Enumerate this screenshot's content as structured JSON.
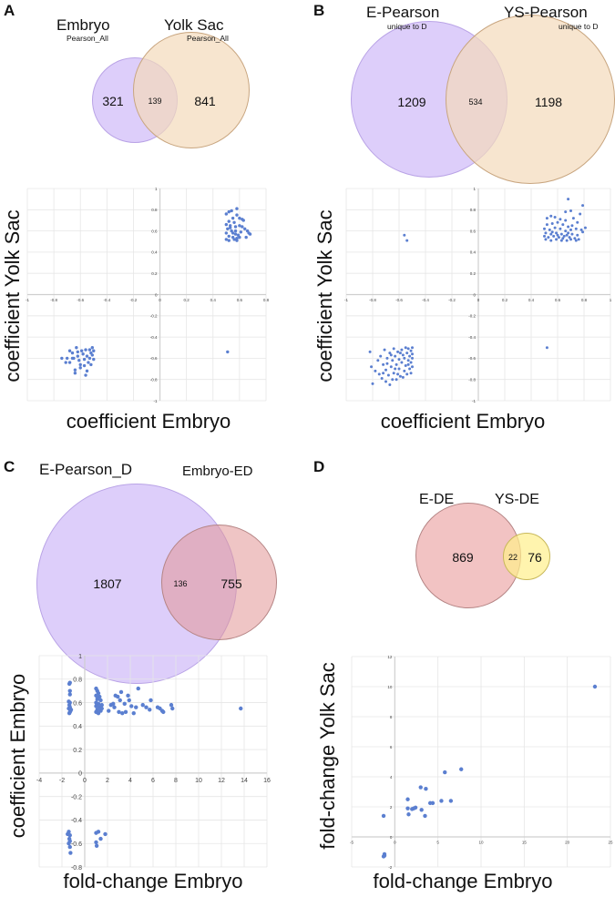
{
  "panels": {
    "A": {
      "label": "A",
      "venn": {
        "left": "Embryo",
        "left_sub": "Pearson_All",
        "right": "Yolk Sac",
        "right_sub": "Pearson_All",
        "only_left": "321",
        "both": "139",
        "only_right": "841"
      },
      "ylabel": "coefficient Yolk Sac",
      "xlabel": "coefficient Embryo"
    },
    "B": {
      "label": "B",
      "venn": {
        "left": "E-Pearson",
        "left_sub": "unique to D",
        "right": "YS-Pearson",
        "right_sub": "unique to D",
        "only_left": "1209",
        "both": "534",
        "only_right": "1198"
      },
      "ylabel": "coefficient Yolk Sac",
      "xlabel": "coefficient Embryo"
    },
    "C": {
      "label": "C",
      "venn": {
        "left": "E-Pearson_D",
        "right": "Embryo-ED",
        "only_left": "1807",
        "both": "136",
        "only_right": "755"
      },
      "ylabel": "coefficient Embryo",
      "xlabel": "fold-change Embryo"
    },
    "D": {
      "label": "D",
      "venn": {
        "left": "E-DE",
        "right": "YS-DE",
        "only_left": "869",
        "both": "22",
        "only_right": "76"
      },
      "ylabel": "fold-change Yolk Sac",
      "xlabel": "fold-change Embryo"
    }
  },
  "colors": {
    "point": "#5b7fd0",
    "grid": "#e6e6e6",
    "axis": "#cfcfcf",
    "purple": "#d9c8f6",
    "orange": "#f5dfc2",
    "pink": "#e8a6a6",
    "yellow": "#fff3a0"
  },
  "chart_data": [
    {
      "id": "A",
      "type": "scatter",
      "xlabel": "coefficient Embryo",
      "ylabel": "coefficient Yolk Sac",
      "xlim": [
        -1,
        0.8
      ],
      "ylim": [
        -1,
        1
      ],
      "xticks": [
        "-1",
        "-0.8",
        "-0.6",
        "-0.4",
        "-0.2",
        "0",
        "0.2",
        "0.4",
        "0.6",
        "0.8"
      ],
      "xtick_values": [
        -1,
        -0.8,
        -0.6,
        -0.4,
        -0.2,
        0,
        0.2,
        0.4,
        0.6,
        0.8
      ],
      "yticks": [
        "-1",
        "-0.8",
        "-0.6",
        "-0.4",
        "-0.2",
        "0",
        "0.2",
        "0.4",
        "0.6",
        "0.8",
        "1"
      ],
      "ytick_values": [
        -1,
        -0.8,
        -0.6,
        -0.4,
        -0.2,
        0,
        0.2,
        0.4,
        0.6,
        0.8,
        1
      ],
      "points": [
        [
          0.5,
          0.76
        ],
        [
          0.52,
          0.78
        ],
        [
          0.54,
          0.79
        ],
        [
          0.58,
          0.81
        ],
        [
          0.58,
          0.75
        ],
        [
          0.55,
          0.72
        ],
        [
          0.6,
          0.72
        ],
        [
          0.62,
          0.71
        ],
        [
          0.63,
          0.7
        ],
        [
          0.52,
          0.69
        ],
        [
          0.56,
          0.68
        ],
        [
          0.5,
          0.66
        ],
        [
          0.53,
          0.65
        ],
        [
          0.57,
          0.64
        ],
        [
          0.6,
          0.65
        ],
        [
          0.62,
          0.64
        ],
        [
          0.64,
          0.62
        ],
        [
          0.66,
          0.6
        ],
        [
          0.67,
          0.58
        ],
        [
          0.68,
          0.57
        ],
        [
          0.51,
          0.62
        ],
        [
          0.54,
          0.6
        ],
        [
          0.55,
          0.58
        ],
        [
          0.57,
          0.57
        ],
        [
          0.59,
          0.56
        ],
        [
          0.5,
          0.58
        ],
        [
          0.52,
          0.55
        ],
        [
          0.55,
          0.54
        ],
        [
          0.58,
          0.53
        ],
        [
          0.6,
          0.54
        ],
        [
          0.65,
          0.54
        ],
        [
          0.5,
          0.52
        ],
        [
          0.52,
          0.51
        ],
        [
          0.56,
          0.52
        ],
        [
          0.58,
          0.51
        ],
        [
          0.53,
          0.63
        ],
        [
          0.57,
          0.6
        ],
        [
          0.61,
          0.59
        ],
        [
          -0.74,
          -0.6
        ],
        [
          -0.71,
          -0.64
        ],
        [
          -0.7,
          -0.6
        ],
        [
          -0.68,
          -0.53
        ],
        [
          -0.68,
          -0.64
        ],
        [
          -0.66,
          -0.55
        ],
        [
          -0.65,
          -0.6
        ],
        [
          -0.64,
          -0.71
        ],
        [
          -0.64,
          -0.74
        ],
        [
          -0.63,
          -0.5
        ],
        [
          -0.62,
          -0.58
        ],
        [
          -0.61,
          -0.62
        ],
        [
          -0.6,
          -0.66
        ],
        [
          -0.6,
          -0.69
        ],
        [
          -0.59,
          -0.53
        ],
        [
          -0.58,
          -0.56
        ],
        [
          -0.57,
          -0.61
        ],
        [
          -0.56,
          -0.76
        ],
        [
          -0.56,
          -0.52
        ],
        [
          -0.55,
          -0.58
        ],
        [
          -0.55,
          -0.72
        ],
        [
          -0.54,
          -0.64
        ],
        [
          -0.53,
          -0.52
        ],
        [
          -0.53,
          -0.6
        ],
        [
          -0.52,
          -0.55
        ],
        [
          -0.52,
          -0.66
        ],
        [
          -0.51,
          -0.5
        ],
        [
          -0.51,
          -0.57
        ],
        [
          -0.5,
          -0.53
        ],
        [
          -0.5,
          -0.61
        ],
        [
          -0.57,
          -0.67
        ],
        [
          -0.62,
          -0.54
        ],
        [
          -0.66,
          -0.6
        ],
        [
          0.51,
          -0.54
        ]
      ]
    },
    {
      "id": "B",
      "type": "scatter",
      "xlabel": "coefficient Embryo",
      "ylabel": "coefficient Yolk Sac",
      "xlim": [
        -1,
        1
      ],
      "ylim": [
        -1,
        1
      ],
      "xticks": [
        "-1",
        "-0.8",
        "-0.6",
        "-0.4",
        "-0.2",
        "0",
        "0.2",
        "0.4",
        "0.6",
        "0.8",
        "1"
      ],
      "xtick_values": [
        -1,
        -0.8,
        -0.6,
        -0.4,
        -0.2,
        0,
        0.2,
        0.4,
        0.6,
        0.8,
        1
      ],
      "yticks": [
        "-1",
        "-0.8",
        "-0.6",
        "-0.4",
        "-0.2",
        "0",
        "0.2",
        "0.4",
        "0.6",
        "0.8",
        "1"
      ],
      "ytick_values": [
        -1,
        -0.8,
        -0.6,
        -0.4,
        -0.2,
        0,
        0.2,
        0.4,
        0.6,
        0.8,
        1
      ],
      "points": [
        [
          0.68,
          0.9
        ],
        [
          0.79,
          0.84
        ],
        [
          0.81,
          0.63
        ],
        [
          0.77,
          0.76
        ],
        [
          0.7,
          0.79
        ],
        [
          0.66,
          0.78
        ],
        [
          0.52,
          0.72
        ],
        [
          0.55,
          0.74
        ],
        [
          0.58,
          0.73
        ],
        [
          0.62,
          0.71
        ],
        [
          0.66,
          0.7
        ],
        [
          0.72,
          0.72
        ],
        [
          0.75,
          0.68
        ],
        [
          0.52,
          0.66
        ],
        [
          0.56,
          0.67
        ],
        [
          0.6,
          0.68
        ],
        [
          0.64,
          0.66
        ],
        [
          0.68,
          0.64
        ],
        [
          0.71,
          0.65
        ],
        [
          0.74,
          0.62
        ],
        [
          0.78,
          0.61
        ],
        [
          0.5,
          0.62
        ],
        [
          0.54,
          0.61
        ],
        [
          0.58,
          0.63
        ],
        [
          0.62,
          0.62
        ],
        [
          0.66,
          0.6
        ],
        [
          0.7,
          0.61
        ],
        [
          0.79,
          0.59
        ],
        [
          0.51,
          0.58
        ],
        [
          0.55,
          0.57
        ],
        [
          0.59,
          0.58
        ],
        [
          0.63,
          0.57
        ],
        [
          0.67,
          0.56
        ],
        [
          0.71,
          0.57
        ],
        [
          0.75,
          0.56
        ],
        [
          0.5,
          0.55
        ],
        [
          0.53,
          0.54
        ],
        [
          0.57,
          0.55
        ],
        [
          0.61,
          0.54
        ],
        [
          0.65,
          0.55
        ],
        [
          0.69,
          0.54
        ],
        [
          0.73,
          0.53
        ],
        [
          0.76,
          0.52
        ],
        [
          0.51,
          0.52
        ],
        [
          0.55,
          0.51
        ],
        [
          0.59,
          0.52
        ],
        [
          0.63,
          0.51
        ],
        [
          0.67,
          0.51
        ],
        [
          0.7,
          0.52
        ],
        [
          0.74,
          0.51
        ],
        [
          0.56,
          0.59
        ],
        [
          0.6,
          0.56
        ],
        [
          0.64,
          0.53
        ],
        [
          0.68,
          0.58
        ],
        [
          -0.56,
          0.56
        ],
        [
          -0.54,
          0.51
        ],
        [
          0.52,
          -0.5
        ],
        [
          -0.82,
          -0.54
        ],
        [
          -0.81,
          -0.68
        ],
        [
          -0.8,
          -0.84
        ],
        [
          -0.78,
          -0.72
        ],
        [
          -0.76,
          -0.62
        ],
        [
          -0.75,
          -0.75
        ],
        [
          -0.74,
          -0.58
        ],
        [
          -0.73,
          -0.79
        ],
        [
          -0.72,
          -0.66
        ],
        [
          -0.71,
          -0.52
        ],
        [
          -0.7,
          -0.71
        ],
        [
          -0.7,
          -0.82
        ],
        [
          -0.69,
          -0.6
        ],
        [
          -0.68,
          -0.76
        ],
        [
          -0.67,
          -0.55
        ],
        [
          -0.67,
          -0.85
        ],
        [
          -0.66,
          -0.68
        ],
        [
          -0.65,
          -0.62
        ],
        [
          -0.64,
          -0.74
        ],
        [
          -0.64,
          -0.51
        ],
        [
          -0.63,
          -0.58
        ],
        [
          -0.62,
          -0.8
        ],
        [
          -0.62,
          -0.66
        ],
        [
          -0.61,
          -0.54
        ],
        [
          -0.6,
          -0.7
        ],
        [
          -0.6,
          -0.61
        ],
        [
          -0.59,
          -0.77
        ],
        [
          -0.58,
          -0.52
        ],
        [
          -0.58,
          -0.64
        ],
        [
          -0.57,
          -0.57
        ],
        [
          -0.56,
          -0.72
        ],
        [
          -0.56,
          -0.6
        ],
        [
          -0.55,
          -0.5
        ],
        [
          -0.55,
          -0.67
        ],
        [
          -0.54,
          -0.55
        ],
        [
          -0.54,
          -0.75
        ],
        [
          -0.53,
          -0.62
        ],
        [
          -0.53,
          -0.51
        ],
        [
          -0.52,
          -0.58
        ],
        [
          -0.52,
          -0.7
        ],
        [
          -0.51,
          -0.53
        ],
        [
          -0.51,
          -0.64
        ],
        [
          -0.5,
          -0.5
        ],
        [
          -0.5,
          -0.56
        ],
        [
          -0.5,
          -0.6
        ],
        [
          -0.5,
          -0.68
        ],
        [
          -0.51,
          -0.74
        ],
        [
          -0.57,
          -0.78
        ],
        [
          -0.63,
          -0.7
        ],
        [
          -0.66,
          -0.57
        ],
        [
          -0.69,
          -0.65
        ],
        [
          -0.72,
          -0.74
        ],
        [
          -0.59,
          -0.55
        ],
        [
          -0.53,
          -0.66
        ],
        [
          -0.61,
          -0.75
        ],
        [
          -0.65,
          -0.8
        ]
      ]
    },
    {
      "id": "C",
      "type": "scatter",
      "xlabel": "fold-change Embryo",
      "ylabel": "coefficient Embryo",
      "xlim": [
        -4,
        16
      ],
      "ylim": [
        -0.8,
        1
      ],
      "xticks": [
        "-4",
        "-2",
        "0",
        "2",
        "4",
        "6",
        "8",
        "10",
        "12",
        "14",
        "16"
      ],
      "xtick_values": [
        -4,
        -2,
        0,
        2,
        4,
        6,
        8,
        10,
        12,
        14,
        16
      ],
      "yticks": [
        "-0.8",
        "-0.6",
        "-0.4",
        "-0.2",
        "0",
        "0.2",
        "0.4",
        "0.6",
        "0.8",
        "1"
      ],
      "ytick_values": [
        -0.8,
        -0.6,
        -0.4,
        -0.2,
        0,
        0.2,
        0.4,
        0.6,
        0.8,
        1
      ],
      "points": [
        [
          -1.3,
          0.77
        ],
        [
          -1.35,
          0.76
        ],
        [
          -1.3,
          0.7
        ],
        [
          -1.3,
          0.67
        ],
        [
          -1.4,
          0.61
        ],
        [
          -1.3,
          0.6
        ],
        [
          -1.35,
          0.58
        ],
        [
          -1.3,
          0.56
        ],
        [
          -1.4,
          0.55
        ],
        [
          -1.25,
          0.53
        ],
        [
          -1.3,
          0.52
        ],
        [
          -1.35,
          0.51
        ],
        [
          -1.2,
          0.54
        ],
        [
          1.0,
          0.72
        ],
        [
          1.1,
          0.7
        ],
        [
          1.2,
          0.68
        ],
        [
          1.0,
          0.66
        ],
        [
          1.3,
          0.65
        ],
        [
          1.1,
          0.63
        ],
        [
          1.4,
          0.62
        ],
        [
          1.0,
          0.6
        ],
        [
          1.2,
          0.59
        ],
        [
          1.5,
          0.58
        ],
        [
          1.0,
          0.57
        ],
        [
          1.3,
          0.56
        ],
        [
          1.1,
          0.54
        ],
        [
          1.4,
          0.53
        ],
        [
          1.0,
          0.52
        ],
        [
          1.2,
          0.51
        ],
        [
          1.5,
          0.55
        ],
        [
          2.1,
          0.53
        ],
        [
          2.3,
          0.58
        ],
        [
          2.5,
          0.59
        ],
        [
          2.6,
          0.56
        ],
        [
          2.7,
          0.66
        ],
        [
          2.9,
          0.65
        ],
        [
          3.0,
          0.52
        ],
        [
          3.1,
          0.62
        ],
        [
          3.2,
          0.69
        ],
        [
          3.3,
          0.51
        ],
        [
          3.5,
          0.59
        ],
        [
          3.6,
          0.52
        ],
        [
          3.8,
          0.66
        ],
        [
          3.9,
          0.62
        ],
        [
          4.1,
          0.57
        ],
        [
          4.3,
          0.51
        ],
        [
          4.5,
          0.56
        ],
        [
          4.7,
          0.72
        ],
        [
          5.1,
          0.58
        ],
        [
          5.4,
          0.56
        ],
        [
          5.7,
          0.54
        ],
        [
          5.8,
          0.62
        ],
        [
          6.4,
          0.56
        ],
        [
          6.6,
          0.55
        ],
        [
          6.8,
          0.53
        ],
        [
          6.9,
          0.52
        ],
        [
          7.6,
          0.58
        ],
        [
          7.7,
          0.55
        ],
        [
          13.7,
          0.55
        ],
        [
          -1.5,
          -0.52
        ],
        [
          -1.4,
          -0.5
        ],
        [
          -1.3,
          -0.53
        ],
        [
          -1.35,
          -0.56
        ],
        [
          -1.3,
          -0.58
        ],
        [
          -1.4,
          -0.6
        ],
        [
          -1.3,
          -0.63
        ],
        [
          -1.25,
          -0.68
        ],
        [
          1.0,
          -0.51
        ],
        [
          1.2,
          -0.5
        ],
        [
          1.8,
          -0.52
        ],
        [
          1.4,
          -0.56
        ],
        [
          1.0,
          -0.59
        ],
        [
          1.05,
          -0.62
        ]
      ]
    },
    {
      "id": "D",
      "type": "scatter",
      "xlabel": "fold-change Embryo",
      "ylabel": "fold-change Yolk Sac",
      "xlim": [
        -5,
        25
      ],
      "ylim": [
        -2,
        12
      ],
      "xticks": [
        "-5",
        "0",
        "5",
        "10",
        "15",
        "20",
        "25"
      ],
      "xtick_values": [
        -5,
        0,
        5,
        10,
        15,
        20,
        25
      ],
      "yticks": [
        "-2",
        "0",
        "2",
        "4",
        "6",
        "8",
        "10",
        "12"
      ],
      "ytick_values": [
        -2,
        0,
        2,
        4,
        6,
        8,
        10,
        12
      ],
      "points": [
        [
          -1.3,
          1.4
        ],
        [
          -1.2,
          -1.15
        ],
        [
          -1.2,
          -1.25
        ],
        [
          -1.3,
          -1.3
        ],
        [
          1.5,
          2.5
        ],
        [
          1.5,
          1.9
        ],
        [
          1.6,
          1.5
        ],
        [
          2.0,
          1.85
        ],
        [
          2.2,
          1.9
        ],
        [
          2.4,
          1.95
        ],
        [
          3.0,
          3.3
        ],
        [
          3.1,
          1.8
        ],
        [
          3.5,
          1.4
        ],
        [
          3.6,
          3.2
        ],
        [
          4.1,
          2.25
        ],
        [
          4.4,
          2.25
        ],
        [
          5.4,
          2.4
        ],
        [
          5.8,
          4.3
        ],
        [
          6.5,
          2.4
        ],
        [
          7.7,
          4.5
        ],
        [
          23.2,
          10.0
        ]
      ]
    }
  ]
}
